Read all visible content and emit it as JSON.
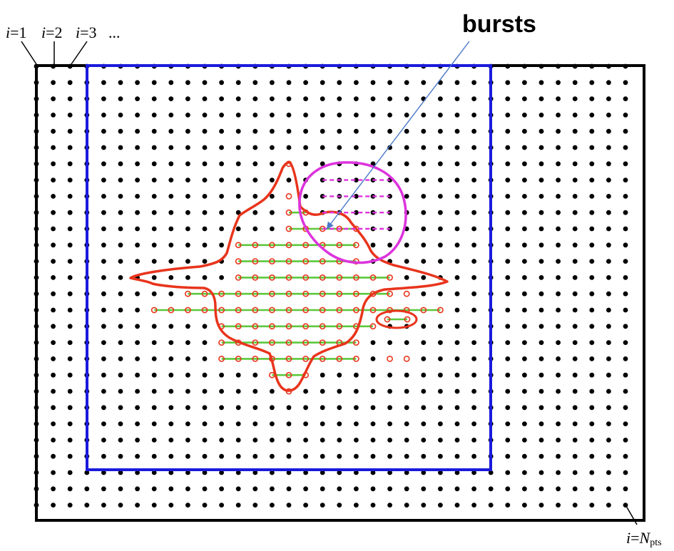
{
  "labels": {
    "index_var": "i",
    "eq": "=",
    "i1": "1",
    "i2": "2",
    "i3": "3",
    "ellipsis": "...",
    "last_main": "N",
    "last_sub": "pts",
    "bursts": "bursts"
  },
  "colors": {
    "frame": "#000000",
    "grid_dot": "#000000",
    "subdomain": "#1a1adc",
    "region_outline": "#e8341c",
    "region_dot": "#e8341c",
    "run_line": "#5cc83c",
    "burst_outline": "#dd33dd",
    "burst_line": "#dd33dd",
    "arrow": "#4a78c8"
  }
}
